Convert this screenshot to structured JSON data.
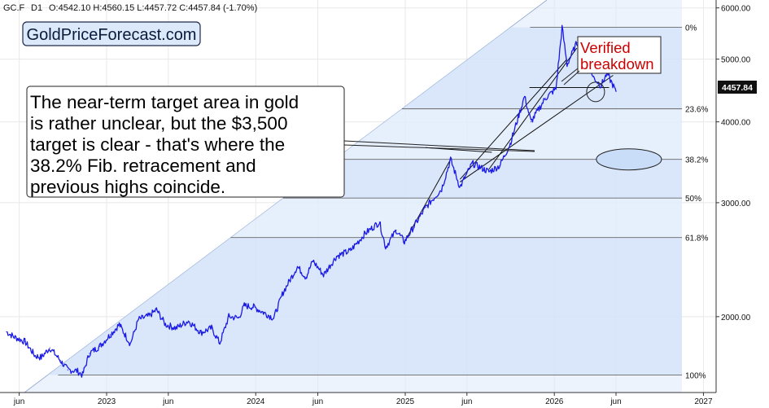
{
  "header": {
    "symbol": "GC.F",
    "timeframe": "D1",
    "ohlc": "O:4542.10  H:4560.15  L:4457.72  C:4457.84  (-1.70%)"
  },
  "brand": "GoldPriceForecast.com",
  "annotation_text": [
    "The near-term target area in gold",
    "is rather unclear, but the $3,500",
    "target is clear - that's where the",
    "38.2% Fib. retracement and",
    "previous highs coincide."
  ],
  "breakdown_text": [
    "Verified",
    "breakdown"
  ],
  "last_price": "4457.84",
  "colors": {
    "price_line": "#1a1ae6",
    "shade": "#dfe9fb",
    "breakdown_red": "#cc0000",
    "grid": "#e8e8e8"
  },
  "chart_data": {
    "type": "line",
    "series": [
      {
        "points": [
          [
            "2022-05-01",
            1895
          ],
          [
            "2022-05-20",
            1860
          ],
          [
            "2022-06-15",
            1830
          ],
          [
            "2022-07-10",
            1740
          ],
          [
            "2022-07-25",
            1730
          ],
          [
            "2022-08-15",
            1790
          ],
          [
            "2022-09-10",
            1710
          ],
          [
            "2022-09-28",
            1655
          ],
          [
            "2022-10-20",
            1650
          ],
          [
            "2022-11-03",
            1625
          ],
          [
            "2022-11-20",
            1755
          ],
          [
            "2022-12-15",
            1800
          ],
          [
            "2023-01-10",
            1875
          ],
          [
            "2023-02-01",
            1945
          ],
          [
            "2023-02-28",
            1815
          ],
          [
            "2023-03-20",
            1980
          ],
          [
            "2023-04-15",
            2005
          ],
          [
            "2023-05-03",
            2050
          ],
          [
            "2023-05-25",
            1945
          ],
          [
            "2023-06-20",
            1920
          ],
          [
            "2023-07-20",
            1970
          ],
          [
            "2023-08-20",
            1890
          ],
          [
            "2023-09-15",
            1920
          ],
          [
            "2023-10-05",
            1820
          ],
          [
            "2023-10-27",
            2000
          ],
          [
            "2023-11-20",
            1990
          ],
          [
            "2023-12-04",
            2080
          ],
          [
            "2023-12-27",
            2070
          ],
          [
            "2024-01-20",
            2030
          ],
          [
            "2024-02-14",
            1990
          ],
          [
            "2024-03-08",
            2180
          ],
          [
            "2024-04-12",
            2390
          ],
          [
            "2024-05-03",
            2300
          ],
          [
            "2024-05-20",
            2440
          ],
          [
            "2024-06-15",
            2320
          ],
          [
            "2024-07-17",
            2480
          ],
          [
            "2024-08-20",
            2530
          ],
          [
            "2024-09-25",
            2690
          ],
          [
            "2024-10-30",
            2800
          ],
          [
            "2024-11-14",
            2560
          ],
          [
            "2024-12-10",
            2720
          ],
          [
            "2024-12-30",
            2610
          ],
          [
            "2025-02-20",
            2950
          ],
          [
            "2025-03-31",
            3150
          ],
          [
            "2025-04-22",
            3500
          ],
          [
            "2025-05-15",
            3170
          ],
          [
            "2025-06-14",
            3450
          ],
          [
            "2025-07-25",
            3350
          ],
          [
            "2025-08-20",
            3420
          ],
          [
            "2025-09-15",
            3700
          ],
          [
            "2025-10-20",
            4380
          ],
          [
            "2025-11-05",
            4000
          ],
          [
            "2025-12-10",
            4350
          ],
          [
            "2026-01-05",
            4500
          ],
          [
            "2026-01-20",
            5600
          ],
          [
            "2026-02-01",
            4900
          ],
          [
            "2026-02-25",
            5300
          ],
          [
            "2026-03-20",
            5200
          ],
          [
            "2026-04-05",
            4700
          ],
          [
            "2026-04-25",
            4550
          ],
          [
            "2026-05-10",
            4750
          ],
          [
            "2026-05-22",
            4590
          ],
          [
            "2026-06-01",
            4457.84
          ]
        ]
      }
    ],
    "y_axis": {
      "scale": "log",
      "range": [
        1590,
        6100
      ],
      "ticks": [
        {
          "value": 2000,
          "label": "2000.00"
        },
        {
          "value": 3000,
          "label": "3000.00"
        },
        {
          "value": 4000,
          "label": "4000.00"
        },
        {
          "value": 5000,
          "label": "5000.00"
        },
        {
          "value": 6000,
          "label": "6000.00"
        }
      ]
    },
    "x_axis": {
      "range": [
        "2022-04-15",
        "2027-02-01"
      ],
      "ticks": [
        {
          "date": "2022-06-01",
          "label": "jun"
        },
        {
          "date": "2023-01-01",
          "label": "2023"
        },
        {
          "date": "2023-06-01",
          "label": "jun"
        },
        {
          "date": "2024-01-01",
          "label": "2024"
        },
        {
          "date": "2024-06-01",
          "label": "jun"
        },
        {
          "date": "2025-01-01",
          "label": "2025"
        },
        {
          "date": "2025-06-01",
          "label": "jun"
        },
        {
          "date": "2026-01-01",
          "label": "2026"
        },
        {
          "date": "2026-06-01",
          "label": "jun"
        },
        {
          "date": "2027-01-01",
          "label": "2027"
        }
      ]
    },
    "fib_levels": [
      {
        "label": "0%",
        "value": 5600
      },
      {
        "label": "23.6%",
        "value": 4190
      },
      {
        "label": "38.2%",
        "value": 3500
      },
      {
        "label": "50%",
        "value": 3050
      },
      {
        "label": "61.8%",
        "value": 2650
      },
      {
        "label": "100%",
        "value": 1625
      }
    ],
    "fib_anchor_start": "2022-11-03",
    "trendlines": [
      [
        [
          "2024-12-30",
          2610
        ],
        [
          "2025-04-22",
          3500
        ]
      ],
      [
        [
          "2025-05-15",
          3260
        ],
        [
          "2026-02-01",
          5000
        ]
      ],
      [
        [
          "2025-07-25",
          3380
        ],
        [
          "2026-02-25",
          5200
        ]
      ],
      [
        [
          "2025-05-15",
          3230
        ],
        [
          "2026-05-25",
          4720
        ]
      ],
      [
        [
          "2025-02-20",
          3650
        ],
        [
          "2025-08-01",
          3590
        ]
      ]
    ],
    "support_line": [
      [
        "2025-11-01",
        4520
      ],
      [
        "2026-05-15",
        4520
      ]
    ],
    "target_ellipse": {
      "date": "2026-03-25",
      "value": 3500
    },
    "breakdown_circle": {
      "date": "2026-04-20",
      "value": 4450
    }
  }
}
